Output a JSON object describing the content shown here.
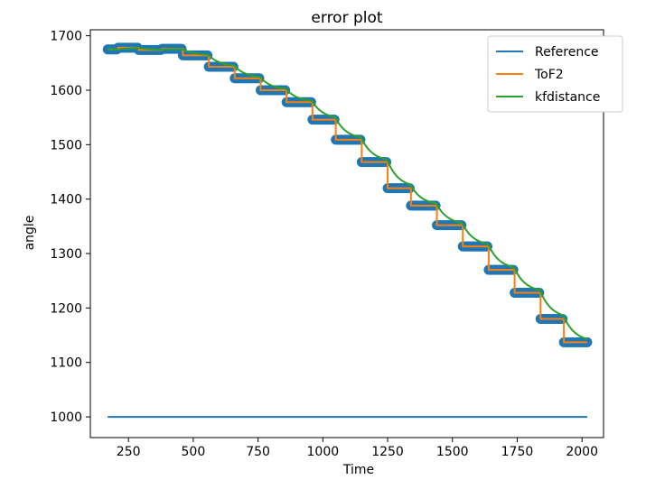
{
  "chart_data": {
    "type": "line",
    "title": "error plot",
    "xlabel": "Time",
    "ylabel": "angle",
    "xlim": [
      103,
      2083
    ],
    "ylim": [
      962,
      1711
    ],
    "xticks": [
      250,
      500,
      750,
      1000,
      1250,
      1500,
      1750,
      2000
    ],
    "yticks": [
      1000,
      1100,
      1200,
      1300,
      1400,
      1500,
      1600,
      1700
    ],
    "grid": false,
    "legend_position": "upper right",
    "colors": {
      "reference": "#1f77b4",
      "tof2": "#ff7f0e",
      "kfdistance": "#2ca02c",
      "markers": "#1f77b4",
      "axis": "#000000"
    },
    "steps": [
      {
        "x": 170,
        "y": 1675
      },
      {
        "x": 210,
        "y": 1678
      },
      {
        "x": 290,
        "y": 1674
      },
      {
        "x": 380,
        "y": 1676
      },
      {
        "x": 460,
        "y": 1664
      },
      {
        "x": 560,
        "y": 1643
      },
      {
        "x": 660,
        "y": 1622
      },
      {
        "x": 760,
        "y": 1600
      },
      {
        "x": 860,
        "y": 1578
      },
      {
        "x": 960,
        "y": 1546
      },
      {
        "x": 1050,
        "y": 1509
      },
      {
        "x": 1150,
        "y": 1468
      },
      {
        "x": 1250,
        "y": 1420
      },
      {
        "x": 1340,
        "y": 1388
      },
      {
        "x": 1440,
        "y": 1352
      },
      {
        "x": 1540,
        "y": 1313
      },
      {
        "x": 1640,
        "y": 1270
      },
      {
        "x": 1740,
        "y": 1228
      },
      {
        "x": 1840,
        "y": 1180
      },
      {
        "x": 1930,
        "y": 1137
      },
      {
        "x": 2020,
        "y": 1137
      }
    ],
    "series": [
      {
        "name": "Reference",
        "x": [
          170,
          2020
        ],
        "values": [
          1000,
          1000
        ]
      },
      {
        "name": "ToF2",
        "note": "step series derived from steps"
      },
      {
        "name": "kfdistance",
        "note": "smoothed series lagging the ToF2 steps"
      }
    ],
    "legend": [
      "Reference",
      "ToF2",
      "kfdistance"
    ]
  }
}
